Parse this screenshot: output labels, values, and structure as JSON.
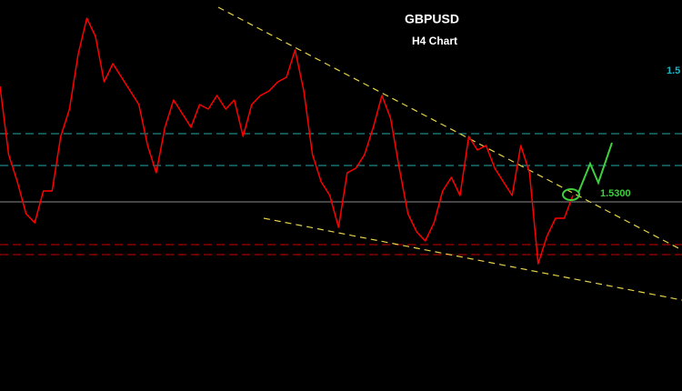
{
  "chart_data": {
    "type": "line",
    "title": "GBPUSD",
    "subtitle": "H4 Chart",
    "ylim": [
      1.4884,
      1.5744
    ],
    "series": [
      {
        "name": "GBPUSD",
        "color": "#ff0000",
        "values": [
          1.5554,
          1.5404,
          1.5344,
          1.5274,
          1.5254,
          1.5324,
          1.5324,
          1.5444,
          1.5504,
          1.5624,
          1.5704,
          1.5664,
          1.5564,
          1.5604,
          1.5574,
          1.5544,
          1.5514,
          1.5424,
          1.5364,
          1.5464,
          1.5524,
          1.5494,
          1.5464,
          1.5514,
          1.5504,
          1.5534,
          1.5504,
          1.5524,
          1.5444,
          1.5514,
          1.5534,
          1.5544,
          1.5564,
          1.5574,
          1.5634,
          1.5544,
          1.5404,
          1.5344,
          1.5314,
          1.5244,
          1.5364,
          1.5374,
          1.5404,
          1.5464,
          1.5534,
          1.5484,
          1.5374,
          1.5274,
          1.5234,
          1.5214,
          1.5254,
          1.5324,
          1.5354,
          1.5314,
          1.5444,
          1.5414,
          1.5424,
          1.5374,
          1.5344,
          1.5314,
          1.5424,
          1.5364,
          1.5164,
          1.5224,
          1.5264,
          1.5264,
          1.5314
        ]
      }
    ],
    "levels": [
      {
        "value": 1.545,
        "color": "#2aa7a7"
      },
      {
        "value": 1.538,
        "color": "#2aa7a7"
      },
      {
        "value": {
          "value": 1.53,
          "label": "1.5300"
        },
        "color": "#8a8a8a"
      },
      {
        "value": 1.5206,
        "color": "#cc0000"
      },
      {
        "value": 1.5184,
        "color": "#cc0000"
      }
    ],
    "annotations": [
      {
        "text": "1.5",
        "color": "#19b5c4"
      }
    ]
  }
}
